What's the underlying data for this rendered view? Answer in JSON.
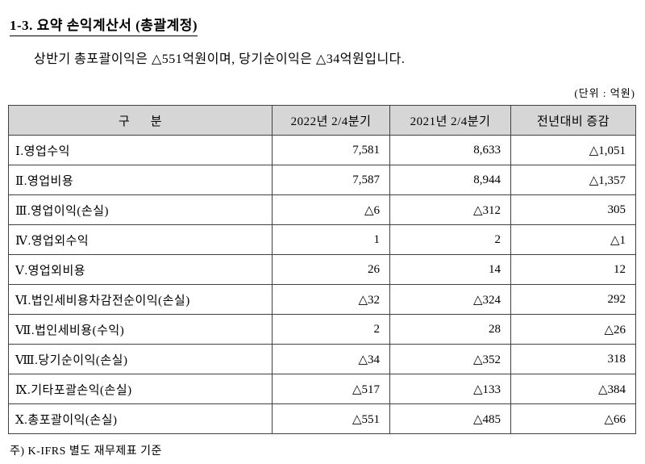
{
  "page": {
    "title": "1-3. 요약 손익계산서 (총괄계정)",
    "subtitle": "상반기 총포괄이익은 △551억원이며, 당기순이익은 △34억원입니다.",
    "unit_note": "(단위 : 억원)",
    "footnote": "주) K-IFRS 별도 재무제표 기준"
  },
  "table": {
    "headers": [
      "구      분",
      "2022년 2/4분기",
      "2021년 2/4분기",
      "전년대비 증감"
    ],
    "rows": [
      {
        "label": "Ⅰ.영업수익",
        "values": [
          "7,581",
          "8,633",
          "△1,051"
        ]
      },
      {
        "label": "Ⅱ.영업비용",
        "values": [
          "7,587",
          "8,944",
          "△1,357"
        ]
      },
      {
        "label": "Ⅲ.영업이익(손실)",
        "values": [
          "△6",
          "△312",
          "305"
        ]
      },
      {
        "label": "Ⅳ.영업외수익",
        "values": [
          "1",
          "2",
          "△1"
        ]
      },
      {
        "label": "Ⅴ.영업외비용",
        "values": [
          "26",
          "14",
          "12"
        ]
      },
      {
        "label": "Ⅵ.법인세비용차감전순이익(손실)",
        "values": [
          "△32",
          "△324",
          "292"
        ]
      },
      {
        "label": "Ⅶ.법인세비용(수익)",
        "values": [
          "2",
          "28",
          "△26"
        ]
      },
      {
        "label": "Ⅷ.당기순이익(손실)",
        "values": [
          "△34",
          "△352",
          "318"
        ]
      },
      {
        "label": "Ⅸ.기타포괄손익(손실)",
        "values": [
          "△517",
          "△133",
          "△384"
        ]
      },
      {
        "label": "Ⅹ.총포괄이익(손실)",
        "values": [
          "△551",
          "△485",
          "△66"
        ]
      }
    ]
  }
}
